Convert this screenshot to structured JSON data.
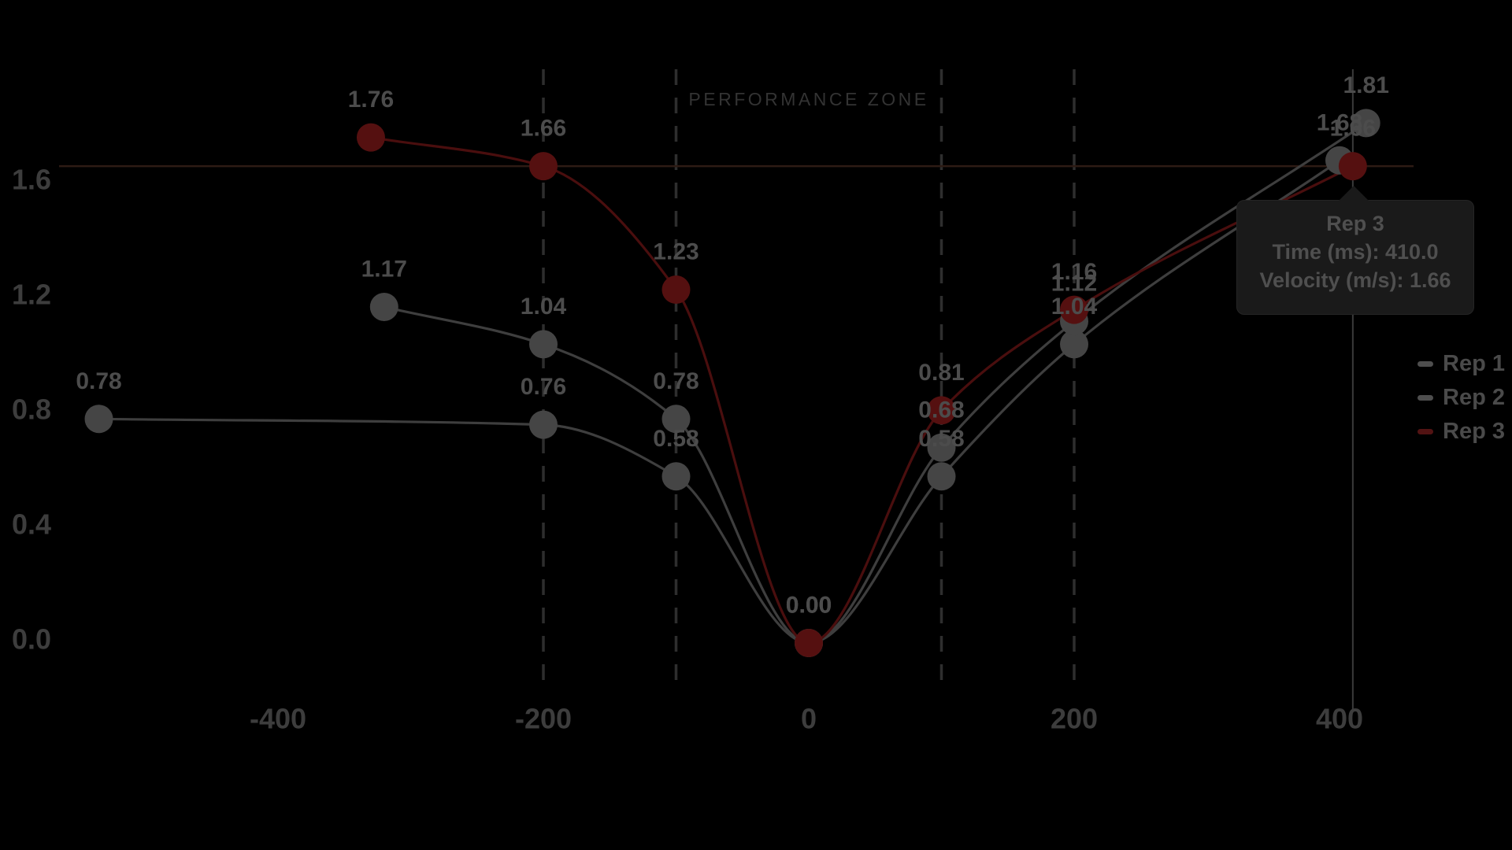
{
  "performance_zone_label": "PERFORMANCE ZONE",
  "legend": [
    {
      "label": "Rep 1",
      "color": "#4e4e4e"
    },
    {
      "label": "Rep 2",
      "color": "#4e4e4e"
    },
    {
      "label": "Rep 3",
      "color": "#521313"
    }
  ],
  "tooltip": {
    "title": "Rep 3",
    "time_line": "Time (ms): 410.0",
    "velocity_line": "Velocity (m/s): 1.66"
  },
  "chart_data": {
    "type": "line",
    "xlabel": "Time (ms)",
    "ylabel": "Velocity (m/s)",
    "x_ticks": [
      -400,
      -200,
      0,
      200,
      400
    ],
    "x_tick_labels": [
      "-400",
      "-200",
      "0",
      "200",
      "400"
    ],
    "y_ticks": [
      0.0,
      0.4,
      0.8,
      1.2,
      1.6
    ],
    "y_tick_labels": [
      "0.0",
      "0.4",
      "0.8",
      "1.2",
      "1.6"
    ],
    "xlim": [
      -585,
      480
    ],
    "ylim": [
      -0.15,
      2.0
    ],
    "grid": "dashed-vertical-only",
    "dashed_vlines": [
      -200,
      -100,
      100,
      200
    ],
    "performance_zone_range": [
      -100,
      100
    ],
    "legend_position": "right",
    "hover_point": {
      "series": "Rep 3",
      "time_ms": 410.0,
      "velocity_ms": 1.66
    },
    "series": [
      {
        "name": "Rep 1",
        "color": "#3e3e3e",
        "dot_color": "#454545",
        "x": [
          -535,
          -200,
          -100,
          0,
          100,
          200,
          400
        ],
        "values": [
          0.78,
          0.76,
          0.58,
          0.0,
          0.58,
          1.04,
          1.68
        ],
        "labels": [
          "0.78",
          "0.76",
          "0.58",
          "0.00",
          "0.58",
          "1.04",
          "1.68"
        ]
      },
      {
        "name": "Rep 2",
        "color": "#3e3e3e",
        "dot_color": "#454545",
        "x": [
          -320,
          -200,
          -100,
          0,
          100,
          200,
          420
        ],
        "values": [
          1.17,
          1.04,
          0.78,
          0.0,
          0.68,
          1.12,
          1.81
        ],
        "labels": [
          "1.17",
          "1.04",
          "0.78",
          "0.00",
          "0.68",
          "1.12",
          "1.81"
        ]
      },
      {
        "name": "Rep 3",
        "color": "#4a0e0e",
        "dot_color": "#551010",
        "x": [
          -330,
          -200,
          -100,
          0,
          100,
          200,
          410
        ],
        "values": [
          1.76,
          1.66,
          1.23,
          0.0,
          0.81,
          1.16,
          1.66
        ],
        "labels": [
          "1.76",
          "1.66",
          "1.23",
          "0.00",
          "0.81",
          "1.16",
          "1.66"
        ]
      }
    ]
  }
}
